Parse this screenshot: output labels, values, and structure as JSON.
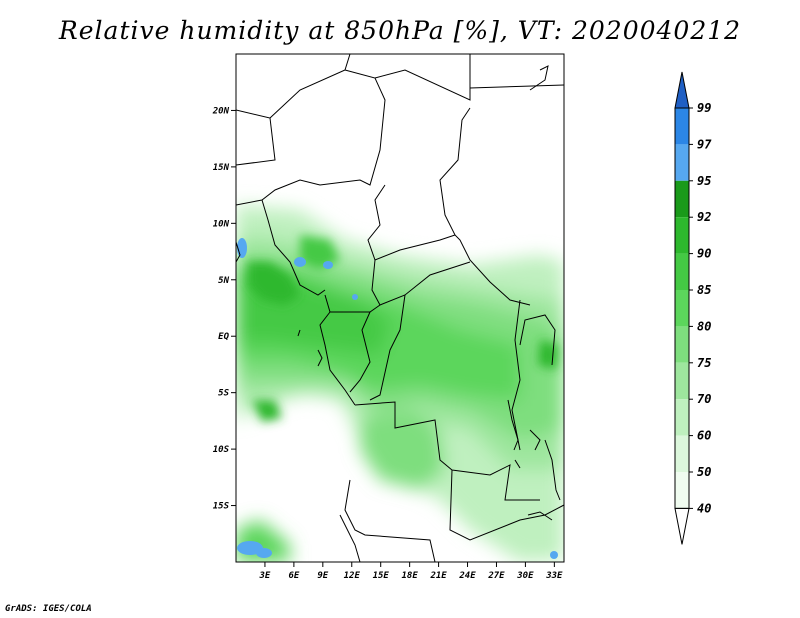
{
  "title": "Relative humidity at 850hPa [%], VT: 2020040212",
  "credit": "GrADS: IGES/COLA",
  "map": {
    "lon_range": [
      0,
      34
    ],
    "lat_range": [
      -20,
      25
    ],
    "lat_ticks": [
      {
        "value": 20,
        "label": "20N"
      },
      {
        "value": 15,
        "label": "15N"
      },
      {
        "value": 10,
        "label": "10N"
      },
      {
        "value": 5,
        "label": "5N"
      },
      {
        "value": 0,
        "label": "EQ"
      },
      {
        "value": -5,
        "label": "5S"
      },
      {
        "value": -10,
        "label": "10S"
      },
      {
        "value": -15,
        "label": "15S"
      }
    ],
    "lon_ticks": [
      {
        "value": 3,
        "label": "3E"
      },
      {
        "value": 6,
        "label": "6E"
      },
      {
        "value": 9,
        "label": "9E"
      },
      {
        "value": 12,
        "label": "12E"
      },
      {
        "value": 15,
        "label": "15E"
      },
      {
        "value": 18,
        "label": "18E"
      },
      {
        "value": 21,
        "label": "21E"
      },
      {
        "value": 24,
        "label": "24E"
      },
      {
        "value": 27,
        "label": "27E"
      },
      {
        "value": 30,
        "label": "30E"
      },
      {
        "value": 33,
        "label": "33E"
      }
    ]
  },
  "colorbar": {
    "levels": [
      {
        "label": "99",
        "color": "#2a6fd6"
      },
      {
        "label": "97",
        "color": "#2b86e6"
      },
      {
        "label": "95",
        "color": "#56a8f0"
      },
      {
        "label": "92",
        "color": "#1a9a1a"
      },
      {
        "label": "90",
        "color": "#2db82d"
      },
      {
        "label": "85",
        "color": "#44c944"
      },
      {
        "label": "80",
        "color": "#5cd65c"
      },
      {
        "label": "75",
        "color": "#7ede7e"
      },
      {
        "label": "70",
        "color": "#9ee69e"
      },
      {
        "label": "60",
        "color": "#bff0bf"
      },
      {
        "label": "50",
        "color": "#dcf7dc"
      },
      {
        "label": "40",
        "color": "#f0fcf0"
      }
    ],
    "top_cap_color": "#1f5fc4",
    "bottom_cap_color": "#ffffff"
  }
}
